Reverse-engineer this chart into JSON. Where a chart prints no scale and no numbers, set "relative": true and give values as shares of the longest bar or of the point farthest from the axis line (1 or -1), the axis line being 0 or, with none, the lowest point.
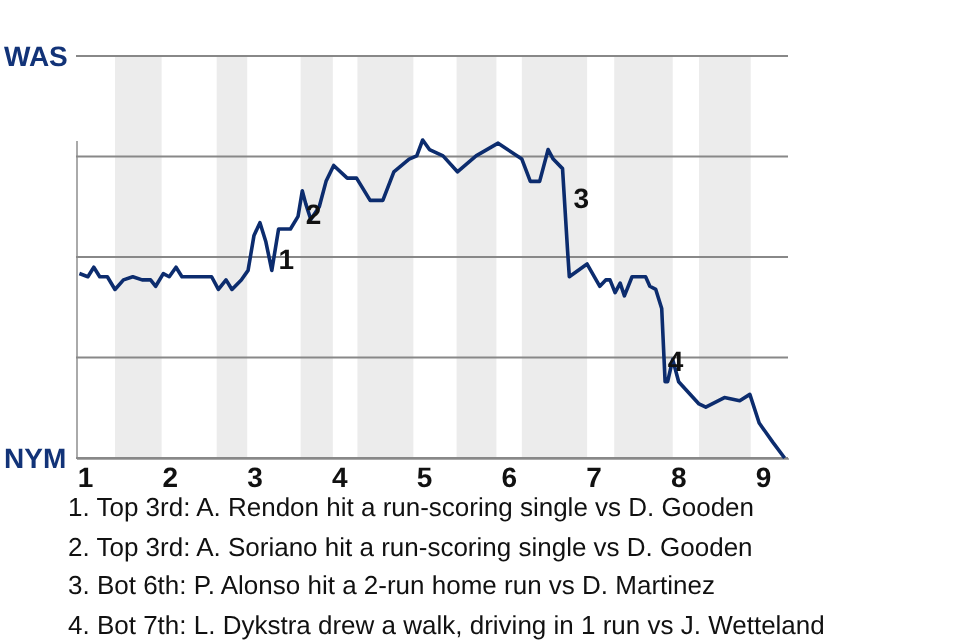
{
  "chart_data": {
    "type": "line",
    "relative": true,
    "x": [
      0.94,
      1.04,
      1.11,
      1.18,
      1.27,
      1.36,
      1.46,
      1.57,
      1.68,
      1.78,
      1.84,
      1.93,
      2,
      2.08,
      2.15,
      2.5,
      2.58,
      2.67,
      2.74,
      2.85,
      2.93,
      3,
      3.07,
      3.14,
      3.21,
      3.29,
      3.43,
      3.52,
      3.57,
      3.61,
      3.67,
      3.77,
      3.85,
      3.94,
      4.1,
      4.21,
      4.37,
      4.52,
      4.65,
      4.83,
      4.92,
      4.99,
      5.07,
      5.23,
      5.4,
      5.62,
      5.88,
      6.16,
      6.26,
      6.37,
      6.47,
      6.53,
      6.64,
      6.7,
      6.72,
      6.93,
      7.08,
      7.15,
      7.2,
      7.26,
      7.32,
      7.37,
      7.46,
      7.62,
      7.67,
      7.74,
      7.81,
      7.85,
      7.88,
      7.94,
      8.01,
      8.25,
      8.33,
      8.55,
      8.73,
      8.85,
      8.96,
      9.12,
      9.26
    ],
    "series": [
      {
        "color": "#0c2c6e",
        "values": [
          0.58,
          0.57,
          0.6,
          0.57,
          0.57,
          0.53,
          0.56,
          0.57,
          0.56,
          0.56,
          0.54,
          0.58,
          0.57,
          0.6,
          0.57,
          0.57,
          0.53,
          0.56,
          0.53,
          0.56,
          0.59,
          0.7,
          0.74,
          0.68,
          0.59,
          0.72,
          0.72,
          0.76,
          0.84,
          0.8,
          0.75,
          0.79,
          0.87,
          0.92,
          0.88,
          0.88,
          0.81,
          0.81,
          0.9,
          0.94,
          0.95,
          1,
          0.97,
          0.95,
          0.9,
          0.95,
          0.99,
          0.94,
          0.87,
          0.87,
          0.97,
          0.94,
          0.91,
          0.65,
          0.57,
          0.61,
          0.54,
          0.56,
          0.56,
          0.52,
          0.55,
          0.51,
          0.57,
          0.57,
          0.54,
          0.53,
          0.47,
          0.24,
          0.24,
          0.31,
          0.24,
          0.17,
          0.16,
          0.19,
          0.18,
          0.2,
          0.11,
          0.05,
          0
        ]
      }
    ],
    "xlim": [
      0.9,
      9.3
    ],
    "xticks": [
      1,
      2,
      3,
      4,
      5,
      6,
      7,
      8,
      9
    ],
    "grid": "y",
    "marker": "none",
    "line_style": "solid",
    "bands": [
      {
        "axis": "x",
        "from": 1.36,
        "to": 1.91,
        "color": "#ececec"
      },
      {
        "axis": "x",
        "from": 2.56,
        "to": 2.92,
        "color": "#ececec"
      },
      {
        "axis": "x",
        "from": 3.55,
        "to": 3.93,
        "color": "#ececec"
      },
      {
        "axis": "x",
        "from": 4.22,
        "to": 4.88,
        "color": "#ececec"
      },
      {
        "axis": "x",
        "from": 5.39,
        "to": 5.86,
        "color": "#ececec"
      },
      {
        "axis": "x",
        "from": 6.16,
        "to": 6.93,
        "color": "#ececec"
      },
      {
        "axis": "x",
        "from": 7.25,
        "to": 7.94,
        "color": "#ececec"
      },
      {
        "axis": "x",
        "from": 8.25,
        "to": 8.86,
        "color": "#ececec"
      }
    ],
    "annotations": [
      "WAS",
      "NYM",
      {
        "text": "1",
        "x": 3.29,
        "y": 0.62
      },
      {
        "text": "2",
        "x": 3.61,
        "y": 0.76
      },
      {
        "text": "3",
        "x": 6.77,
        "y": 0.81
      },
      {
        "text": "4",
        "x": 7.88,
        "y": 0.3
      },
      "1. Top 3rd: A. Rendon hit a run-scoring single vs D. Gooden",
      "2. Top 3rd: A. Soriano hit a run-scoring single vs D. Gooden",
      "3. Bot 6th: P. Alonso hit a 2-run home run vs D. Martinez",
      "4. Bot 7th: L. Dykstra drew a walk, driving in 1 run vs J. Wetteland"
    ]
  }
}
